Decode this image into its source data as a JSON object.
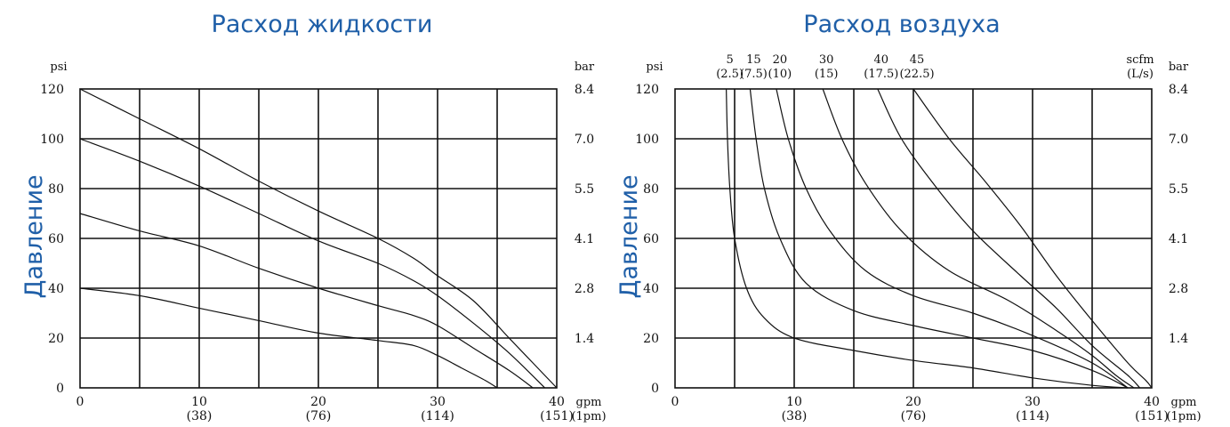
{
  "chart_data": [
    {
      "type": "line",
      "title": "Расход жидкости",
      "ylabel": "Давление",
      "y_unit_left": "psi",
      "y_unit_right": "bar",
      "x_unit": "gpm",
      "x_unit_secondary": "(1pm)",
      "xlim": [
        0,
        40
      ],
      "ylim": [
        0,
        120
      ],
      "grid": true,
      "x_ticks": [
        "0",
        "10",
        "20",
        "30",
        "40"
      ],
      "x_ticks_secondary": [
        "",
        "(38)",
        "(76)",
        "(114)",
        "(151)"
      ],
      "y_ticks": [
        "0",
        "20",
        "40",
        "60",
        "80",
        "100",
        "120"
      ],
      "y_ticks_right": [
        "1.4",
        "2.8",
        "4.1",
        "5.5",
        "7.0",
        "8.4"
      ],
      "series": [
        {
          "points": [
            [
              0,
              120
            ],
            [
              5,
              108
            ],
            [
              10,
              96
            ],
            [
              15,
              83
            ],
            [
              20,
              71
            ],
            [
              25,
              60
            ],
            [
              28,
              52
            ],
            [
              30,
              45
            ],
            [
              33,
              35
            ],
            [
              36,
              20
            ],
            [
              38,
              10
            ],
            [
              40,
              0
            ]
          ]
        },
        {
          "points": [
            [
              0,
              100
            ],
            [
              5,
              91
            ],
            [
              10,
              81
            ],
            [
              15,
              70
            ],
            [
              20,
              59
            ],
            [
              25,
              50
            ],
            [
              28,
              43
            ],
            [
              30,
              37
            ],
            [
              33,
              26
            ],
            [
              36,
              14
            ],
            [
              39,
              0
            ]
          ]
        },
        {
          "points": [
            [
              0,
              70
            ],
            [
              5,
              63
            ],
            [
              10,
              57
            ],
            [
              15,
              48
            ],
            [
              20,
              40
            ],
            [
              25,
              33
            ],
            [
              28,
              29
            ],
            [
              30,
              25
            ],
            [
              33,
              16
            ],
            [
              36,
              7
            ],
            [
              38,
              0
            ]
          ]
        },
        {
          "points": [
            [
              0,
              40
            ],
            [
              5,
              37
            ],
            [
              10,
              32
            ],
            [
              15,
              27
            ],
            [
              20,
              22
            ],
            [
              25,
              19
            ],
            [
              28,
              17
            ],
            [
              30,
              13
            ],
            [
              32,
              8
            ],
            [
              34,
              3
            ],
            [
              35,
              0
            ]
          ]
        }
      ]
    },
    {
      "type": "line",
      "title": "Расход воздуха",
      "ylabel": "Давление",
      "y_unit_left": "psi",
      "y_unit_right": "bar",
      "x_unit": "gpm",
      "x_unit_secondary": "(1pm)",
      "air_unit": "scfm",
      "air_unit_secondary": "(L/s)",
      "xlim": [
        0,
        40
      ],
      "ylim": [
        0,
        120
      ],
      "grid": true,
      "x_ticks": [
        "0",
        "10",
        "20",
        "30",
        "40"
      ],
      "x_ticks_secondary": [
        "",
        "(38)",
        "(76)",
        "(114)",
        "(151)"
      ],
      "y_ticks": [
        "0",
        "20",
        "40",
        "60",
        "80",
        "100",
        "120"
      ],
      "y_ticks_right": [
        "1.4",
        "2.8",
        "4.1",
        "5.5",
        "7.0",
        "8.4"
      ],
      "air_labels": [
        {
          "value": "5",
          "secondary": "(2.5)",
          "x": 4.3
        },
        {
          "value": "15",
          "secondary": "(7.5)",
          "x": 6.3
        },
        {
          "value": "20",
          "secondary": "(10)",
          "x": 8.5
        },
        {
          "value": "30",
          "secondary": "(15)",
          "x": 12.4
        },
        {
          "value": "40",
          "secondary": "(17.5)",
          "x": 17.0
        },
        {
          "value": "45",
          "secondary": "(22.5)",
          "x": 20.0
        }
      ],
      "series": [
        {
          "name": "5",
          "points": [
            [
              4.3,
              120
            ],
            [
              4.4,
              100
            ],
            [
              4.6,
              80
            ],
            [
              5,
              60
            ],
            [
              6,
              40
            ],
            [
              7.5,
              28
            ],
            [
              10,
              20
            ],
            [
              15,
              15
            ],
            [
              20,
              11
            ],
            [
              25,
              8
            ],
            [
              30,
              4
            ],
            [
              35,
              1
            ],
            [
              38,
              0
            ]
          ]
        },
        {
          "name": "15",
          "points": [
            [
              6.3,
              120
            ],
            [
              6.8,
              100
            ],
            [
              7.5,
              80
            ],
            [
              8.8,
              60
            ],
            [
              11,
              42
            ],
            [
              15,
              31
            ],
            [
              20,
              25
            ],
            [
              25,
              20
            ],
            [
              30,
              15
            ],
            [
              35,
              7
            ],
            [
              38,
              0
            ]
          ]
        },
        {
          "name": "20",
          "points": [
            [
              8.5,
              120
            ],
            [
              9.5,
              100
            ],
            [
              11,
              80
            ],
            [
              13,
              63
            ],
            [
              16,
              47
            ],
            [
              20,
              37
            ],
            [
              25,
              30
            ],
            [
              30,
              21
            ],
            [
              35,
              10
            ],
            [
              38,
              0
            ]
          ]
        },
        {
          "name": "30",
          "points": [
            [
              12.4,
              120
            ],
            [
              14,
              100
            ],
            [
              16,
              82
            ],
            [
              19,
              63
            ],
            [
              23,
              47
            ],
            [
              28,
              35
            ],
            [
              32,
              23
            ],
            [
              35,
              13
            ],
            [
              37,
              5
            ],
            [
              38.5,
              0
            ]
          ]
        },
        {
          "name": "40",
          "points": [
            [
              17,
              120
            ],
            [
              19,
              100
            ],
            [
              22,
              80
            ],
            [
              25,
              63
            ],
            [
              29,
              45
            ],
            [
              32,
              32
            ],
            [
              35,
              17
            ],
            [
              38,
              5
            ],
            [
              39,
              0
            ]
          ]
        },
        {
          "name": "45",
          "points": [
            [
              20,
              120
            ],
            [
              23,
              100
            ],
            [
              26,
              83
            ],
            [
              29,
              65
            ],
            [
              32,
              45
            ],
            [
              35,
              27
            ],
            [
              38,
              10
            ],
            [
              39.5,
              3
            ],
            [
              40,
              0
            ]
          ]
        }
      ]
    }
  ]
}
